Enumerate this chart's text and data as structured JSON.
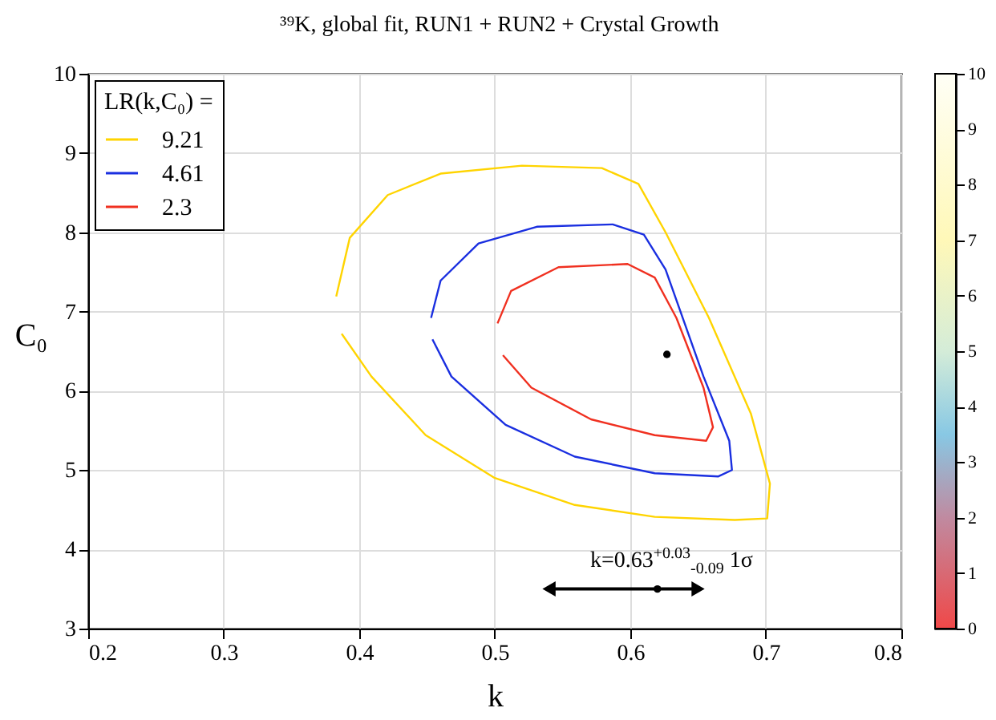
{
  "chart_data": {
    "type": "line",
    "title": "³⁹K, global fit, RUN1 + RUN2 + Crystal Growth",
    "xlabel": "k",
    "ylabel": "C₀",
    "legend_title": "LR(k,C₀) =",
    "legend": "top left",
    "grid": true,
    "xlim": [
      0.2,
      0.8
    ],
    "xticks": [
      0.2,
      0.3,
      0.4,
      0.5,
      0.6,
      0.7,
      0.8
    ],
    "ylim": [
      3,
      10
    ],
    "yticks": [
      3,
      4,
      5,
      6,
      7,
      8,
      9,
      10
    ],
    "clim": [
      0,
      10
    ],
    "cticks": [
      0,
      1,
      2,
      3,
      4,
      5,
      6,
      7,
      8,
      9,
      10
    ],
    "annotations": [
      "k=0.63$^{+0.03}$$_{-0.09}$ 1σ"
    ],
    "series": [
      {
        "name": "9.21",
        "color": "#ffd400",
        "x": [
          0.383,
          0.393,
          0.421,
          0.46,
          0.52,
          0.579,
          0.606,
          0.626,
          0.658,
          0.689,
          0.703,
          0.701,
          0.677,
          0.618,
          0.559,
          0.5,
          0.449,
          0.409,
          0.387
        ],
        "values": [
          7.19,
          7.93,
          8.47,
          8.74,
          8.84,
          8.81,
          8.61,
          8.0,
          6.92,
          5.71,
          4.83,
          4.39,
          4.37,
          4.41,
          4.56,
          4.9,
          5.44,
          6.18,
          6.72
        ]
      },
      {
        "name": "4.61",
        "color": "#1a2fe0",
        "x": [
          0.453,
          0.46,
          0.488,
          0.531,
          0.587,
          0.61,
          0.626,
          0.654,
          0.673,
          0.675,
          0.665,
          0.618,
          0.559,
          0.508,
          0.468,
          0.454
        ],
        "values": [
          6.92,
          7.39,
          7.86,
          8.07,
          8.1,
          7.97,
          7.53,
          6.18,
          5.37,
          5.0,
          4.92,
          4.96,
          5.17,
          5.57,
          6.18,
          6.65
        ]
      },
      {
        "name": "2.3",
        "color": "#f03020",
        "x": [
          0.502,
          0.512,
          0.547,
          0.598,
          0.618,
          0.634,
          0.654,
          0.661,
          0.656,
          0.618,
          0.571,
          0.527,
          0.506
        ],
        "values": [
          6.85,
          7.26,
          7.56,
          7.6,
          7.43,
          6.92,
          6.04,
          5.54,
          5.37,
          5.44,
          5.64,
          6.04,
          6.45
        ]
      },
      {
        "type": "scatter",
        "color": "#000000",
        "x": [
          0.627
        ],
        "values": [
          6.46
        ]
      },
      {
        "type": "scatter",
        "color": "#000000",
        "x": [
          0.62
        ],
        "values": [
          3.5
        ],
        "xerrors": [
          [
            0.54,
            0.65
          ]
        ]
      }
    ]
  }
}
